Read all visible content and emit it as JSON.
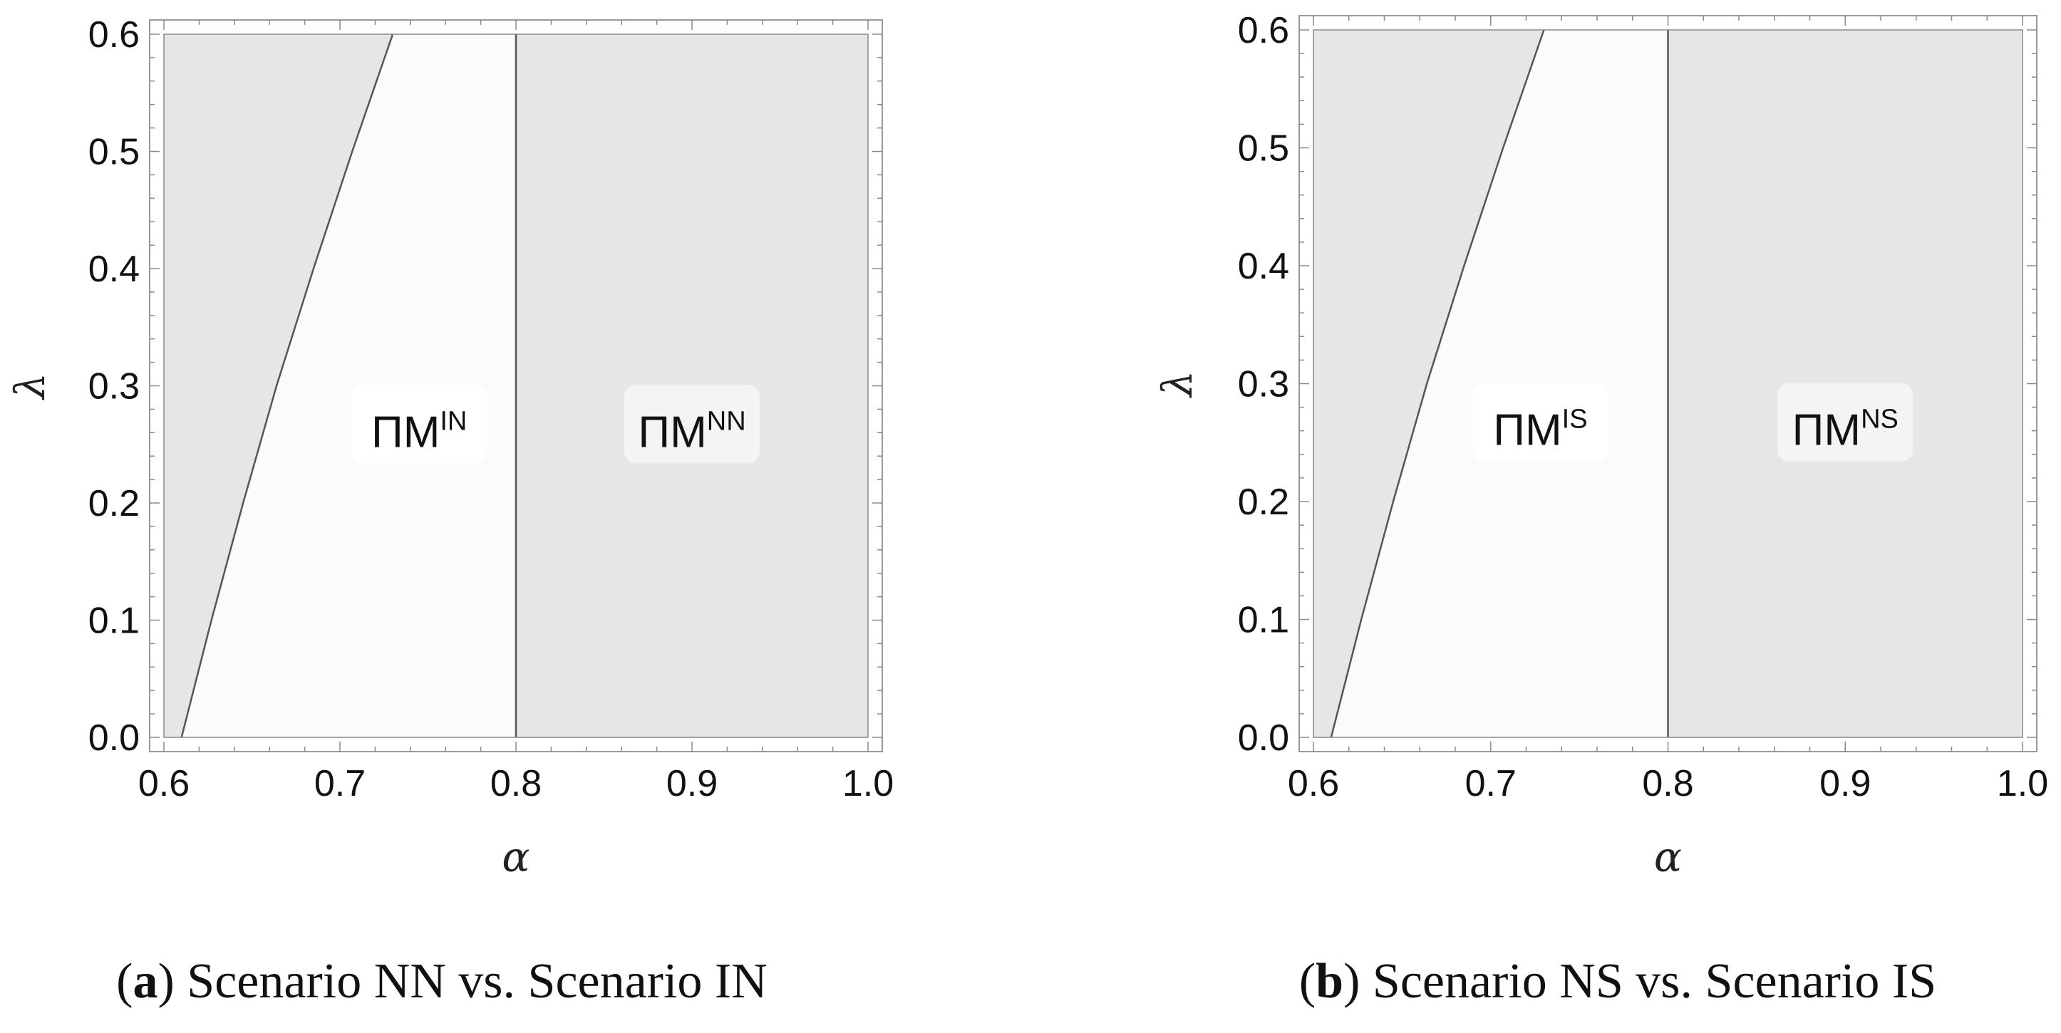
{
  "chart_data": [
    {
      "type": "area",
      "caption": {
        "open": "(",
        "tag": "a",
        "close": ")",
        "text": " Scenario NN vs. Scenario IN"
      },
      "xlabel": "α",
      "ylabel": "λ",
      "xlim": [
        0.6,
        1.0
      ],
      "ylim": [
        0.0,
        0.6
      ],
      "xticks": [
        "0.6",
        "0.7",
        "0.8",
        "0.9",
        "1.0"
      ],
      "yticks": [
        "0.0",
        "0.1",
        "0.2",
        "0.3",
        "0.4",
        "0.5",
        "0.6"
      ],
      "boundary_curve": [
        {
          "x": 0.61,
          "y": 0.0
        },
        {
          "x": 0.627,
          "y": 0.1
        },
        {
          "x": 0.645,
          "y": 0.2
        },
        {
          "x": 0.664,
          "y": 0.3
        },
        {
          "x": 0.685,
          "y": 0.4
        },
        {
          "x": 0.707,
          "y": 0.5
        },
        {
          "x": 0.73,
          "y": 0.6
        }
      ],
      "vertical_boundary": 0.8,
      "regions": [
        {
          "label_base": "ΠM",
          "label_sup": "IN",
          "x": 0.745,
          "y": 0.26,
          "fill": "#fbfbfb",
          "box": "#ffffff"
        },
        {
          "label_base": "ΠM",
          "label_sup": "NN",
          "x": 0.9,
          "y": 0.26,
          "fill": "#e6e6e6",
          "box": "#f4f4f4"
        }
      ],
      "colors": {
        "shaded": "#e6e6e6",
        "light": "#fbfbfb",
        "line": "#555555"
      }
    },
    {
      "type": "area",
      "caption": {
        "open": "(",
        "tag": "b",
        "close": ")",
        "text": " Scenario NS vs. Scenario IS"
      },
      "xlabel": "α",
      "ylabel": "λ",
      "xlim": [
        0.6,
        1.0
      ],
      "ylim": [
        0.0,
        0.6
      ],
      "xticks": [
        "0.6",
        "0.7",
        "0.8",
        "0.9",
        "1.0"
      ],
      "yticks": [
        "0.0",
        "0.1",
        "0.2",
        "0.3",
        "0.4",
        "0.5",
        "0.6"
      ],
      "boundary_curve": [
        {
          "x": 0.61,
          "y": 0.0
        },
        {
          "x": 0.627,
          "y": 0.1
        },
        {
          "x": 0.645,
          "y": 0.2
        },
        {
          "x": 0.664,
          "y": 0.3
        },
        {
          "x": 0.685,
          "y": 0.4
        },
        {
          "x": 0.707,
          "y": 0.5
        },
        {
          "x": 0.73,
          "y": 0.6
        }
      ],
      "vertical_boundary": 0.8,
      "regions": [
        {
          "label_base": "ΠM",
          "label_sup": "IS",
          "x": 0.728,
          "y": 0.26,
          "fill": "#fbfbfb",
          "box": "#ffffff"
        },
        {
          "label_base": "ΠM",
          "label_sup": "NS",
          "x": 0.9,
          "y": 0.26,
          "fill": "#e6e6e6",
          "box": "#f4f4f4"
        }
      ],
      "colors": {
        "shaded": "#e6e6e6",
        "light": "#fbfbfb",
        "line": "#555555"
      }
    }
  ]
}
